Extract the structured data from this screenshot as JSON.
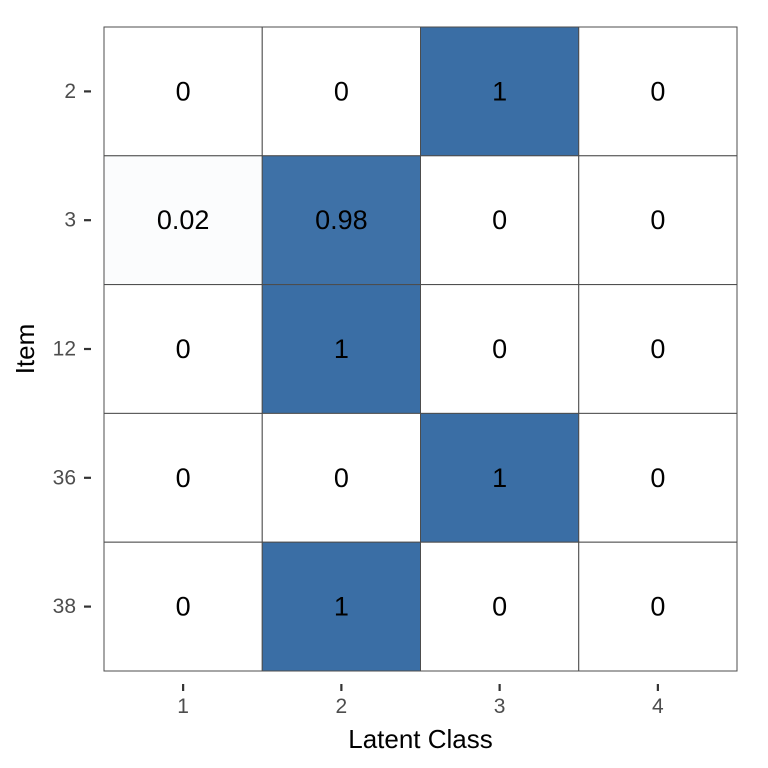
{
  "chart_data": {
    "type": "heatmap",
    "title": "",
    "xlabel": "Latent Class",
    "ylabel": "Item",
    "x_categories": [
      "1",
      "2",
      "3",
      "4"
    ],
    "y_categories": [
      "2",
      "3",
      "12",
      "36",
      "38"
    ],
    "values": [
      [
        0,
        0,
        1,
        0
      ],
      [
        0.02,
        0.98,
        0,
        0
      ],
      [
        0,
        1,
        0,
        0
      ],
      [
        0,
        0,
        1,
        0
      ],
      [
        0,
        1,
        0,
        0
      ]
    ],
    "value_labels": [
      [
        "0",
        "0",
        "1",
        "0"
      ],
      [
        "0.02",
        "0.98",
        "0",
        "0"
      ],
      [
        "0",
        "1",
        "0",
        "0"
      ],
      [
        "0",
        "0",
        "1",
        "0"
      ],
      [
        "0",
        "1",
        "0",
        "0"
      ]
    ],
    "color_low": "#ffffff",
    "color_high": "#3a6ea5",
    "grid": false,
    "legend": "none"
  }
}
